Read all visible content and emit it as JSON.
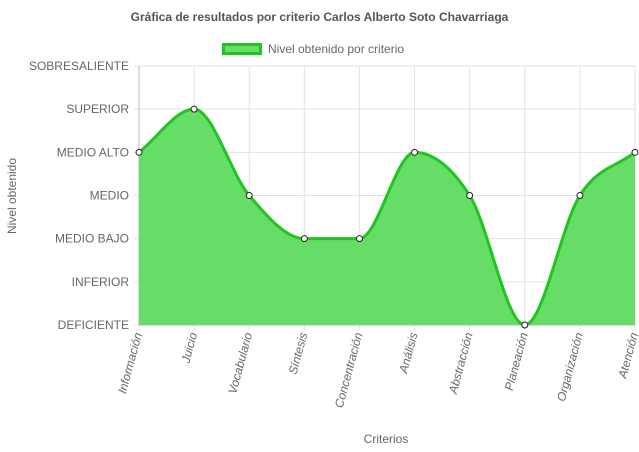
{
  "chart_data": {
    "type": "line",
    "title": "Gráfica de resultados por criterio Carlos Alberto Soto Chavarriaga",
    "xlabel": "Criterios",
    "ylabel": "Nivel obtenido",
    "categories": [
      "Información",
      "Juicio",
      "Vocabulario",
      "Síntesis",
      "Concentración",
      "Análisis",
      "Abstracción",
      "Planeación",
      "Organización",
      "Atención"
    ],
    "y_levels": [
      "DEFICIENTE",
      "INFERIOR",
      "MEDIO BAJO",
      "MEDIO",
      "MEDIO ALTO",
      "SUPERIOR",
      "SOBRESALIENTE"
    ],
    "series": [
      {
        "name": "Nivel obtenido por criterio",
        "values": [
          4,
          5,
          3,
          2,
          2,
          4,
          3,
          0,
          3,
          4
        ]
      }
    ],
    "ylim": [
      0,
      6
    ],
    "grid": true,
    "filled": true,
    "legend_position": "top",
    "colors": {
      "fill": "#66dd66",
      "line": "#22c422"
    }
  }
}
